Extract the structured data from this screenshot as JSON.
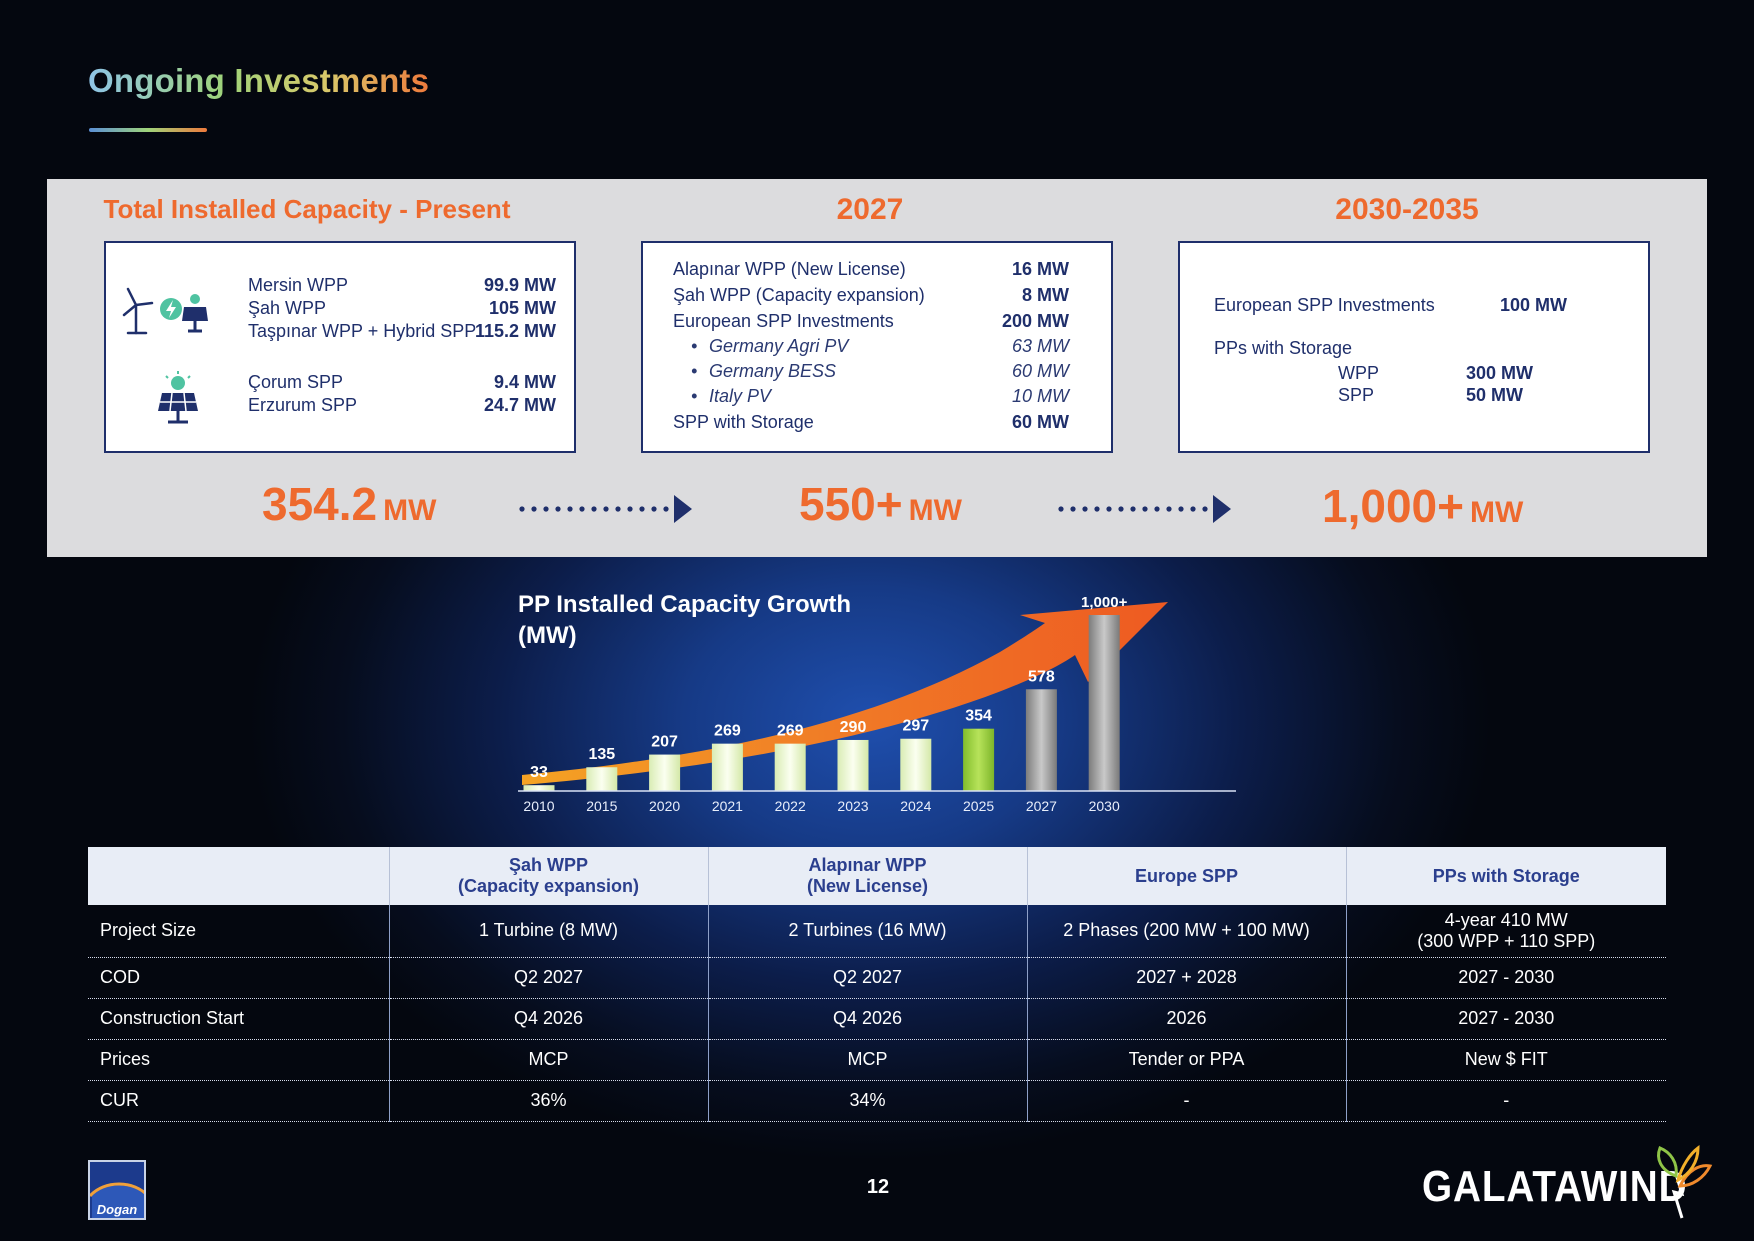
{
  "page": {
    "title": "Ongoing Investments",
    "page_number": "12",
    "brand": "GALATAWIND",
    "logo_text": "Dogan"
  },
  "present": {
    "heading": "Total Installed Capacity - Present",
    "rows": [
      {
        "label": "Mersin WPP",
        "value": "99.9 MW"
      },
      {
        "label": "Şah WPP",
        "value": "105 MW"
      },
      {
        "label": "Taşpınar WPP + Hybrid SPP",
        "value": "115.2 MW"
      },
      {
        "label": "Çorum SPP",
        "value": "9.4 MW"
      },
      {
        "label": "Erzurum SPP",
        "value": "24.7 MW"
      }
    ],
    "total_number": "354.2",
    "total_unit": "MW"
  },
  "y2027": {
    "heading": "2027",
    "rows": [
      {
        "label": "Alapınar WPP (New License)",
        "value": "16 MW"
      },
      {
        "label": "Şah WPP (Capacity expansion)",
        "value": "8 MW"
      },
      {
        "label": "European SPP Investments",
        "value": "200 MW"
      },
      {
        "label": "Germany Agri PV",
        "value": "63 MW"
      },
      {
        "label": "Germany BESS",
        "value": "60 MW"
      },
      {
        "label": "Italy PV",
        "value": "10 MW"
      },
      {
        "label": "SPP with Storage",
        "value": "60 MW"
      }
    ],
    "bullet": "•",
    "total_number": "550+",
    "total_unit": "MW"
  },
  "y2030": {
    "heading": "2030-2035",
    "european_label": "European SPP Investments",
    "european_value": "100 MW",
    "storage_label": "PPs with Storage",
    "wpp_label": "WPP",
    "wpp_value": "300 MW",
    "spp_label": "SPP",
    "spp_value": "50 MW",
    "total_number": "1,000+",
    "total_unit": "MW"
  },
  "chart_data": {
    "type": "bar",
    "title": "PP Installed Capacity Growth (MW)",
    "title_line1": "PP Installed Capacity Growth",
    "title_line2": "(MW)",
    "categories": [
      "2010",
      "2015",
      "2020",
      "2021",
      "2022",
      "2023",
      "2024",
      "2025",
      "2027",
      "2030"
    ],
    "values": [
      33,
      135,
      207,
      269,
      269,
      290,
      297,
      354,
      578,
      1000
    ],
    "labels": [
      "33",
      "135",
      "207",
      "269",
      "269",
      "290",
      "297",
      "354",
      "578",
      "1,000+"
    ],
    "colors": {
      "history": "#eef6d4",
      "current": "#9bd13d",
      "future": "#9a9a9a",
      "arrow": "#ee6a2e"
    },
    "ylim": [
      0,
      1000
    ],
    "grid": false,
    "legend": "none"
  },
  "table": {
    "headers": [
      "",
      "Şah WPP\n(Capacity expansion)",
      "Alapınar WPP\n(New License)",
      "Europe SPP",
      "PPs with Storage"
    ],
    "rows": [
      [
        "Project Size",
        "1 Turbine (8 MW)",
        "2 Turbines (16 MW)",
        "2 Phases (200 MW + 100 MW)",
        "4-year 410 MW\n(300 WPP + 110 SPP)"
      ],
      [
        "COD",
        "Q2 2027",
        "Q2 2027",
        "2027 + 2028",
        "2027 - 2030"
      ],
      [
        "Construction Start",
        "Q4 2026",
        "Q4 2026",
        "2026",
        "2027 - 2030"
      ],
      [
        "Prices",
        "MCP",
        "MCP",
        "Tender or PPA",
        "New $ FIT"
      ],
      [
        "CUR",
        "36%",
        "34%",
        "-",
        "-"
      ]
    ]
  }
}
